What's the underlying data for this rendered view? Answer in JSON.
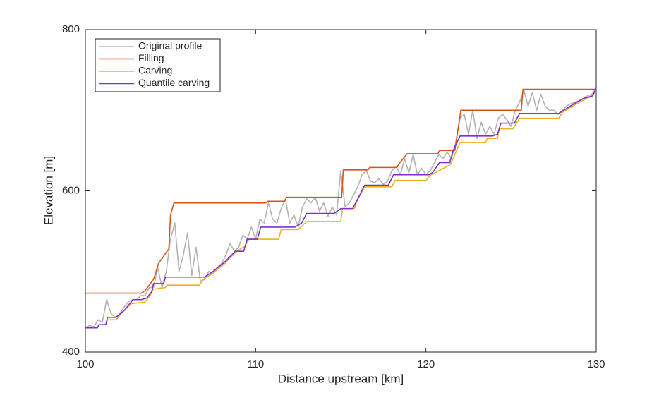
{
  "chart_data": {
    "type": "line",
    "xlabel": "Distance upstream [km]",
    "ylabel": "Elevation [m]",
    "xlim": [
      100,
      130
    ],
    "ylim": [
      400,
      800
    ],
    "xticks": [
      100,
      110,
      120,
      130
    ],
    "yticks": [
      400,
      600,
      800
    ],
    "legend": "upper left",
    "series": [
      {
        "name": "Original profile",
        "color": "#b3b3b3",
        "x": [
          100,
          100.25,
          100.5,
          100.75,
          101,
          101.25,
          101.5,
          101.75,
          102,
          102.25,
          102.5,
          102.75,
          103,
          103.25,
          103.5,
          103.75,
          104,
          104.25,
          104.5,
          104.75,
          105,
          105.25,
          105.5,
          105.75,
          106,
          106.25,
          106.5,
          106.75,
          107,
          107.25,
          107.5,
          107.75,
          108,
          108.25,
          108.5,
          108.75,
          109,
          109.25,
          109.5,
          109.75,
          110,
          110.25,
          110.5,
          110.75,
          111,
          111.25,
          111.5,
          111.75,
          112,
          112.25,
          112.5,
          112.75,
          113,
          113.25,
          113.5,
          113.75,
          114,
          114.25,
          114.5,
          114.75,
          115,
          115.25,
          115.5,
          115.75,
          116,
          116.25,
          116.5,
          116.75,
          117,
          117.25,
          117.5,
          117.75,
          118,
          118.25,
          118.5,
          118.75,
          119,
          119.25,
          119.5,
          119.75,
          120,
          120.25,
          120.5,
          120.75,
          121,
          121.25,
          121.5,
          121.75,
          122,
          122.25,
          122.5,
          122.75,
          123,
          123.25,
          123.5,
          123.75,
          124,
          124.25,
          124.5,
          124.75,
          125,
          125.25,
          125.5,
          125.75,
          126,
          126.25,
          126.5,
          126.75,
          127,
          127.25,
          127.5,
          127.75,
          128,
          128.25,
          128.5,
          128.75,
          129,
          129.25,
          129.5,
          129.75,
          130
        ],
        "values": [
          430,
          433,
          431,
          440,
          437,
          465,
          448,
          443,
          447,
          455,
          462,
          465,
          465,
          470,
          470,
          480,
          480,
          505,
          480,
          500,
          540,
          560,
          500,
          520,
          548,
          495,
          530,
          488,
          490,
          500,
          498,
          505,
          510,
          520,
          535,
          525,
          530,
          545,
          540,
          555,
          540,
          565,
          560,
          585,
          565,
          560,
          578,
          590,
          560,
          570,
          555,
          580,
          590,
          585,
          592,
          575,
          585,
          568,
          580,
          570,
          625,
          580,
          585,
          595,
          605,
          620,
          625,
          612,
          610,
          615,
          608,
          612,
          625,
          630,
          620,
          640,
          622,
          645,
          620,
          628,
          620,
          625,
          635,
          645,
          640,
          648,
          640,
          660,
          690,
          695,
          670,
          700,
          665,
          685,
          670,
          680,
          670,
          690,
          695,
          688,
          680,
          700,
          710,
          725,
          705,
          722,
          700,
          720,
          705,
          700,
          700,
          695,
          700,
          705,
          708,
          710,
          712,
          715,
          718,
          720,
          728
        ]
      },
      {
        "name": "Filling",
        "color": "#d95319",
        "x": [
          100,
          103.3,
          103.5,
          104,
          104.3,
          104.9,
          105,
          105.2,
          110.6,
          110.7,
          111.7,
          111.8,
          115.05,
          115.15,
          116.6,
          116.7,
          118.3,
          118.4,
          118.9,
          120.7,
          120.8,
          121.7,
          122.05,
          125.6,
          125.7,
          130
        ],
        "values": [
          473,
          473,
          476,
          490,
          510,
          528,
          570,
          585,
          585,
          587,
          587,
          592,
          592,
          626,
          626,
          629,
          629,
          633,
          646,
          646,
          650,
          650,
          700,
          700,
          726,
          726
        ]
      },
      {
        "name": "Carving",
        "color": "#edb120",
        "x": [
          100,
          100.7,
          100.8,
          101.2,
          101.3,
          101.8,
          102.2,
          102.7,
          103.5,
          103.8,
          104,
          104.7,
          104.8,
          106.7,
          106.9,
          107.5,
          108.2,
          108.4,
          108.9,
          109.4,
          109.6,
          111.35,
          111.5,
          112.5,
          113,
          115,
          115.1,
          115.8,
          116,
          116.4,
          118,
          118.2,
          120,
          120.3,
          121.4,
          121.6,
          122,
          123.5,
          123.6,
          124.2,
          124.3,
          125.1,
          125.5,
          127.8,
          128,
          128.6,
          129.2,
          129.8,
          130
        ],
        "values": [
          430,
          430,
          434,
          434,
          440,
          440,
          450,
          460,
          462,
          470,
          478,
          480,
          483,
          483,
          490,
          498,
          510,
          515,
          525,
          532,
          540,
          540,
          552,
          552,
          562,
          562,
          578,
          578,
          590,
          605,
          605,
          613,
          613,
          620,
          632,
          640,
          660,
          660,
          665,
          665,
          677,
          677,
          690,
          690,
          697,
          705,
          712,
          718,
          728
        ]
      },
      {
        "name": "Quantile carving",
        "color": "#7e2fd0",
        "x": [
          100,
          100.7,
          100.8,
          101.2,
          101.3,
          101.8,
          102.3,
          102.8,
          103.3,
          103.6,
          103.9,
          104,
          104.6,
          104.7,
          107,
          107.5,
          108.2,
          108.8,
          109.3,
          109.5,
          110.1,
          110.3,
          112.3,
          112.7,
          113,
          114.6,
          115,
          115.7,
          116,
          116.4,
          117.8,
          118.1,
          120.2,
          120.4,
          120.8,
          121.4,
          121.6,
          122,
          123.9,
          124.2,
          124.4,
          125.2,
          125.5,
          127.8,
          128.1,
          128.7,
          129.3,
          129.8,
          130
        ],
        "values": [
          430,
          430,
          434,
          434,
          443,
          443,
          452,
          465,
          465,
          467,
          475,
          485,
          485,
          493,
          493,
          500,
          512,
          525,
          525,
          540,
          540,
          555,
          555,
          560,
          572,
          572,
          578,
          578,
          590,
          607,
          607,
          620,
          620,
          623,
          635,
          635,
          650,
          668,
          668,
          670,
          684,
          684,
          696,
          696,
          700,
          708,
          715,
          718,
          728
        ]
      }
    ]
  }
}
